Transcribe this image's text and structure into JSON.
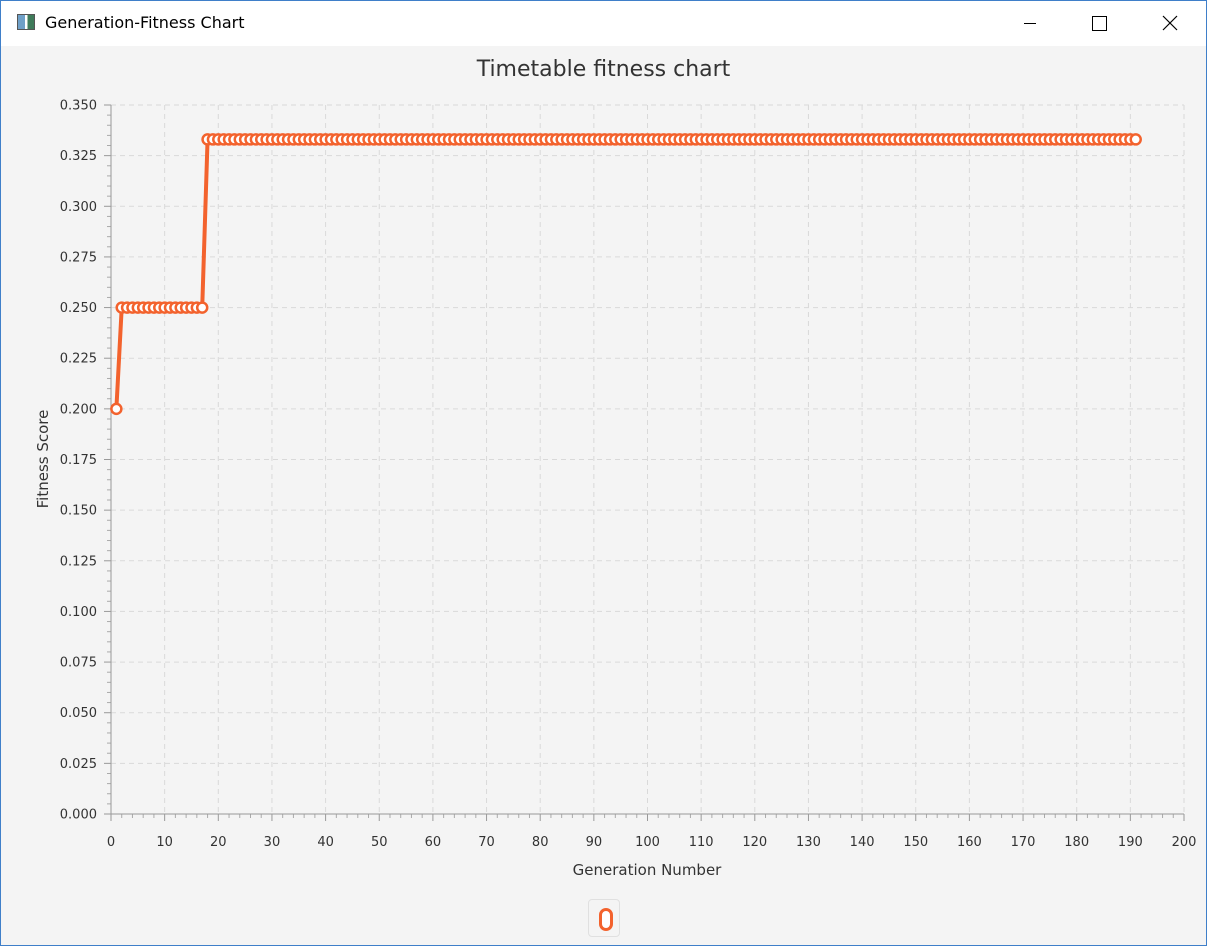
{
  "window": {
    "title": "Generation-Fitness Chart",
    "controls": [
      "minimize",
      "maximize",
      "close"
    ]
  },
  "colors": {
    "series": "#f3622d",
    "grid": "#d9d9d9",
    "background": "#f4f4f4",
    "text": "#333333"
  },
  "chart_data": {
    "type": "line",
    "title": "Timetable fitness chart",
    "xlabel": "Generation Number",
    "ylabel": "Fitness Score",
    "xlim": [
      0,
      200
    ],
    "ylim": [
      0,
      0.35
    ],
    "x_ticks": [
      "0",
      "10",
      "20",
      "30",
      "40",
      "50",
      "60",
      "70",
      "80",
      "90",
      "100",
      "110",
      "120",
      "130",
      "140",
      "150",
      "160",
      "170",
      "180",
      "190",
      "200"
    ],
    "y_ticks": [
      "0.000",
      "0.025",
      "0.050",
      "0.075",
      "0.100",
      "0.125",
      "0.150",
      "0.175",
      "0.200",
      "0.225",
      "0.250",
      "0.275",
      "0.300",
      "0.325",
      "0.350"
    ],
    "grid": true,
    "legend": "bottom-center",
    "series": [
      {
        "name": "",
        "segments": [
          {
            "x_start": 1,
            "x_end": 1,
            "y": 0.2
          },
          {
            "x_start": 2,
            "x_end": 17,
            "y": 0.25
          },
          {
            "x_start": 18,
            "x_end": 191,
            "y": 0.333
          }
        ]
      }
    ]
  }
}
